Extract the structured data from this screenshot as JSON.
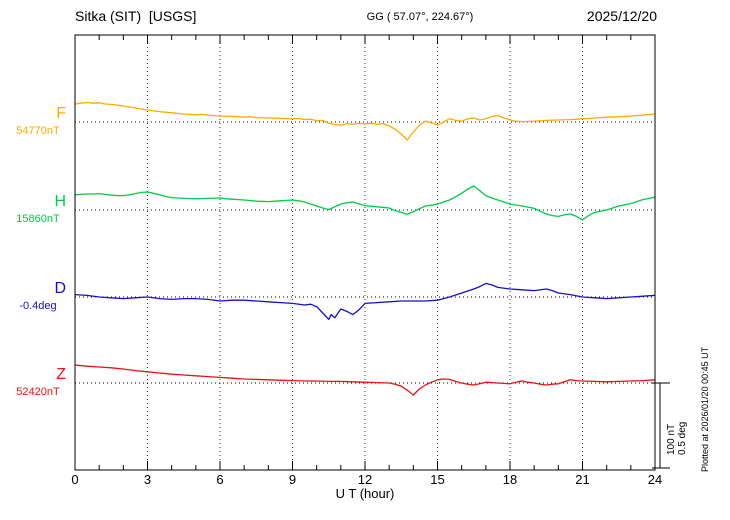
{
  "header": {
    "station": "Sitka (SIT)  [USGS]",
    "coords": "GG ( 57.07°, 224.67°)",
    "date": "2025/12/20"
  },
  "axis": {
    "xlabel": "U T (hour)"
  },
  "scalebar": {
    "line1": "100 nT",
    "line2": "0.5 deg"
  },
  "plotted_at": "Plotted at 2026/01/20 00:45 UT",
  "chart_data": {
    "type": "line",
    "title": "Sitka (SIT) [USGS] magnetogram",
    "xlabel": "U T (hour)",
    "xlim": [
      0,
      24
    ],
    "x_ticks": [
      0,
      3,
      6,
      9,
      12,
      15,
      18,
      21,
      24
    ],
    "grid": "dotted vertical gridlines every 3 hours; dotted horizontal baseline per trace",
    "legend_position": "left trace labels",
    "annotations": {
      "coords": "GG ( 57.07°, 224.67°)",
      "date": "2025/12/20",
      "scale_bar": "100 nT / 0.5 deg",
      "plotted_at": "Plotted at 2026/01/20 00:45 UT"
    },
    "points_are": "offset from baseline_value, in series unit",
    "series": [
      {
        "name": "F",
        "unit": "nT",
        "color": "#FFAA00",
        "baseline_label": "54770nT",
        "baseline_value": 54770,
        "points": [
          [
            0,
            45
          ],
          [
            0.25,
            47
          ],
          [
            0.5,
            49
          ],
          [
            0.75,
            47
          ],
          [
            1,
            48
          ],
          [
            1.25,
            45
          ],
          [
            1.5,
            44
          ],
          [
            1.75,
            42
          ],
          [
            2,
            40
          ],
          [
            2.5,
            35
          ],
          [
            3,
            30
          ],
          [
            3.5,
            26
          ],
          [
            4,
            23
          ],
          [
            4.5,
            20
          ],
          [
            5,
            18
          ],
          [
            5.25,
            19
          ],
          [
            5.5,
            17
          ],
          [
            6,
            15
          ],
          [
            6.5,
            14
          ],
          [
            7,
            12
          ],
          [
            7.25,
            13
          ],
          [
            7.5,
            11
          ],
          [
            8,
            10
          ],
          [
            8.5,
            9
          ],
          [
            9,
            8
          ],
          [
            9.25,
            9
          ],
          [
            9.5,
            6
          ],
          [
            9.75,
            7
          ],
          [
            10,
            3
          ],
          [
            10.25,
            4
          ],
          [
            10.5,
            -3
          ],
          [
            10.75,
            -6
          ],
          [
            11,
            -8
          ],
          [
            11.25,
            -4
          ],
          [
            11.5,
            -6
          ],
          [
            11.75,
            -3
          ],
          [
            12,
            -5
          ],
          [
            12.25,
            -3
          ],
          [
            12.5,
            -6
          ],
          [
            12.75,
            -4
          ],
          [
            13,
            -10
          ],
          [
            13.25,
            -18
          ],
          [
            13.5,
            -30
          ],
          [
            13.75,
            -45
          ],
          [
            14,
            -25
          ],
          [
            14.25,
            -8
          ],
          [
            14.5,
            2
          ],
          [
            14.75,
            -2
          ],
          [
            15,
            -8
          ],
          [
            15.25,
            0
          ],
          [
            15.5,
            8
          ],
          [
            15.75,
            4
          ],
          [
            16,
            2
          ],
          [
            16.25,
            8
          ],
          [
            16.5,
            10
          ],
          [
            16.75,
            5
          ],
          [
            17,
            8
          ],
          [
            17.25,
            14
          ],
          [
            17.5,
            16
          ],
          [
            17.75,
            10
          ],
          [
            18,
            5
          ],
          [
            18.25,
            2
          ],
          [
            18.5,
            1
          ],
          [
            19,
            2
          ],
          [
            19.5,
            4
          ],
          [
            20,
            5
          ],
          [
            20.5,
            6
          ],
          [
            21,
            8
          ],
          [
            21.5,
            10
          ],
          [
            22,
            12
          ],
          [
            22.5,
            13
          ],
          [
            23,
            15
          ],
          [
            23.5,
            17
          ],
          [
            24,
            20
          ]
        ]
      },
      {
        "name": "H",
        "unit": "nT",
        "color": "#00CC44",
        "baseline_label": "15860nT",
        "baseline_value": 15860,
        "points": [
          [
            0,
            38
          ],
          [
            0.25,
            39
          ],
          [
            0.5,
            40
          ],
          [
            0.75,
            40
          ],
          [
            1,
            41
          ],
          [
            1.25,
            39
          ],
          [
            1.5,
            37
          ],
          [
            1.75,
            36
          ],
          [
            2,
            36
          ],
          [
            2.25,
            38
          ],
          [
            2.5,
            41
          ],
          [
            2.75,
            44
          ],
          [
            3,
            45
          ],
          [
            3.25,
            42
          ],
          [
            3.5,
            38
          ],
          [
            3.75,
            34
          ],
          [
            4,
            31
          ],
          [
            4.5,
            29
          ],
          [
            5,
            28
          ],
          [
            5.5,
            29
          ],
          [
            6,
            30
          ],
          [
            6.25,
            28
          ],
          [
            6.5,
            27
          ],
          [
            7,
            25
          ],
          [
            7.5,
            22
          ],
          [
            8,
            21
          ],
          [
            8.5,
            23
          ],
          [
            9,
            25
          ],
          [
            9.25,
            23
          ],
          [
            9.5,
            20
          ],
          [
            9.75,
            15
          ],
          [
            10,
            10
          ],
          [
            10.25,
            5
          ],
          [
            10.5,
            1
          ],
          [
            10.75,
            8
          ],
          [
            11,
            15
          ],
          [
            11.25,
            18
          ],
          [
            11.5,
            20
          ],
          [
            11.75,
            15
          ],
          [
            12,
            11
          ],
          [
            12.5,
            8
          ],
          [
            13,
            5
          ],
          [
            13.25,
            -2
          ],
          [
            13.5,
            -6
          ],
          [
            13.75,
            -11
          ],
          [
            14,
            -4
          ],
          [
            14.25,
            3
          ],
          [
            14.5,
            10
          ],
          [
            14.75,
            12
          ],
          [
            15,
            15
          ],
          [
            15.25,
            20
          ],
          [
            15.5,
            25
          ],
          [
            15.75,
            33
          ],
          [
            16,
            42
          ],
          [
            16.25,
            52
          ],
          [
            16.5,
            60
          ],
          [
            16.75,
            48
          ],
          [
            17,
            36
          ],
          [
            17.25,
            30
          ],
          [
            17.5,
            25
          ],
          [
            17.75,
            20
          ],
          [
            18,
            15
          ],
          [
            18.5,
            10
          ],
          [
            19,
            4
          ],
          [
            19.25,
            -3
          ],
          [
            19.5,
            -10
          ],
          [
            19.75,
            -14
          ],
          [
            20,
            -16
          ],
          [
            20.25,
            -12
          ],
          [
            20.5,
            -10
          ],
          [
            20.75,
            -16
          ],
          [
            21,
            -25
          ],
          [
            21.25,
            -14
          ],
          [
            21.5,
            -6
          ],
          [
            22,
            0
          ],
          [
            22.5,
            10
          ],
          [
            23,
            16
          ],
          [
            23.5,
            26
          ],
          [
            24,
            32
          ]
        ]
      },
      {
        "name": "D",
        "unit": "deg",
        "color": "#1111CC",
        "baseline_label": "-0.4deg",
        "baseline_value": -0.4,
        "points": [
          [
            0,
            0.03
          ],
          [
            0.5,
            0.02
          ],
          [
            1,
            0.0
          ],
          [
            1.5,
            -0.01
          ],
          [
            2,
            -0.02
          ],
          [
            2.5,
            -0.01
          ],
          [
            3,
            0.0
          ],
          [
            3.5,
            -0.02
          ],
          [
            4,
            -0.03
          ],
          [
            4.5,
            -0.02
          ],
          [
            5,
            -0.02
          ],
          [
            5.5,
            -0.03
          ],
          [
            6,
            -0.05
          ],
          [
            6.5,
            -0.04
          ],
          [
            7,
            -0.04
          ],
          [
            7.5,
            -0.05
          ],
          [
            8,
            -0.06
          ],
          [
            8.5,
            -0.07
          ],
          [
            9,
            -0.08
          ],
          [
            9.5,
            -0.1
          ],
          [
            9.75,
            -0.09
          ],
          [
            10,
            -0.12
          ],
          [
            10.25,
            -0.2
          ],
          [
            10.5,
            -0.28
          ],
          [
            10.6,
            -0.22
          ],
          [
            10.75,
            -0.26
          ],
          [
            11,
            -0.15
          ],
          [
            11.25,
            -0.18
          ],
          [
            11.5,
            -0.22
          ],
          [
            11.75,
            -0.16
          ],
          [
            12,
            -0.08
          ],
          [
            12.5,
            -0.07
          ],
          [
            13,
            -0.06
          ],
          [
            13.5,
            -0.05
          ],
          [
            14,
            -0.05
          ],
          [
            14.5,
            -0.05
          ],
          [
            15,
            -0.04
          ],
          [
            15.5,
            0.0
          ],
          [
            16,
            0.05
          ],
          [
            16.5,
            0.1
          ],
          [
            16.75,
            0.13
          ],
          [
            17,
            0.17
          ],
          [
            17.25,
            0.15
          ],
          [
            17.5,
            0.12
          ],
          [
            18,
            0.1
          ],
          [
            18.5,
            0.09
          ],
          [
            19,
            0.08
          ],
          [
            19.5,
            0.1
          ],
          [
            19.75,
            0.08
          ],
          [
            20,
            0.05
          ],
          [
            20.5,
            0.03
          ],
          [
            21,
            0.0
          ],
          [
            21.5,
            -0.01
          ],
          [
            22,
            -0.02
          ],
          [
            22.5,
            -0.01
          ],
          [
            23,
            0.0
          ],
          [
            23.5,
            0.01
          ],
          [
            24,
            0.02
          ]
        ]
      },
      {
        "name": "Z",
        "unit": "nT",
        "color": "#EE1111",
        "baseline_label": "52420nT",
        "baseline_value": 52420,
        "points": [
          [
            0,
            45
          ],
          [
            0.5,
            42
          ],
          [
            1,
            40
          ],
          [
            1.5,
            38
          ],
          [
            2,
            35
          ],
          [
            2.5,
            31
          ],
          [
            3,
            28
          ],
          [
            3.5,
            25
          ],
          [
            4,
            22
          ],
          [
            4.5,
            20
          ],
          [
            5,
            18
          ],
          [
            5.5,
            16
          ],
          [
            6,
            14
          ],
          [
            6.5,
            12
          ],
          [
            7,
            10
          ],
          [
            7.5,
            9
          ],
          [
            8,
            8
          ],
          [
            8.5,
            7
          ],
          [
            9,
            6
          ],
          [
            9.5,
            5
          ],
          [
            10,
            5
          ],
          [
            10.5,
            4
          ],
          [
            11,
            4
          ],
          [
            11.5,
            3
          ],
          [
            12,
            2
          ],
          [
            12.5,
            1
          ],
          [
            13,
            0
          ],
          [
            13.25,
            -3
          ],
          [
            13.5,
            -8
          ],
          [
            13.75,
            -18
          ],
          [
            14,
            -30
          ],
          [
            14.25,
            -15
          ],
          [
            14.5,
            -5
          ],
          [
            14.75,
            2
          ],
          [
            15,
            8
          ],
          [
            15.25,
            10
          ],
          [
            15.5,
            9
          ],
          [
            15.75,
            4
          ],
          [
            16,
            0
          ],
          [
            16.25,
            -3
          ],
          [
            16.5,
            -5
          ],
          [
            16.75,
            -2
          ],
          [
            17,
            2
          ],
          [
            17.5,
            0
          ],
          [
            18,
            -2
          ],
          [
            18.25,
            2
          ],
          [
            18.5,
            5
          ],
          [
            18.75,
            2
          ],
          [
            19,
            0
          ],
          [
            19.25,
            -3
          ],
          [
            19.5,
            -5
          ],
          [
            19.75,
            -3
          ],
          [
            20,
            -2
          ],
          [
            20.25,
            3
          ],
          [
            20.5,
            8
          ],
          [
            20.75,
            6
          ],
          [
            21,
            5
          ],
          [
            21.5,
            4
          ],
          [
            22,
            3
          ],
          [
            22.5,
            4
          ],
          [
            23,
            5
          ],
          [
            23.5,
            6
          ],
          [
            24,
            8
          ]
        ]
      }
    ]
  }
}
